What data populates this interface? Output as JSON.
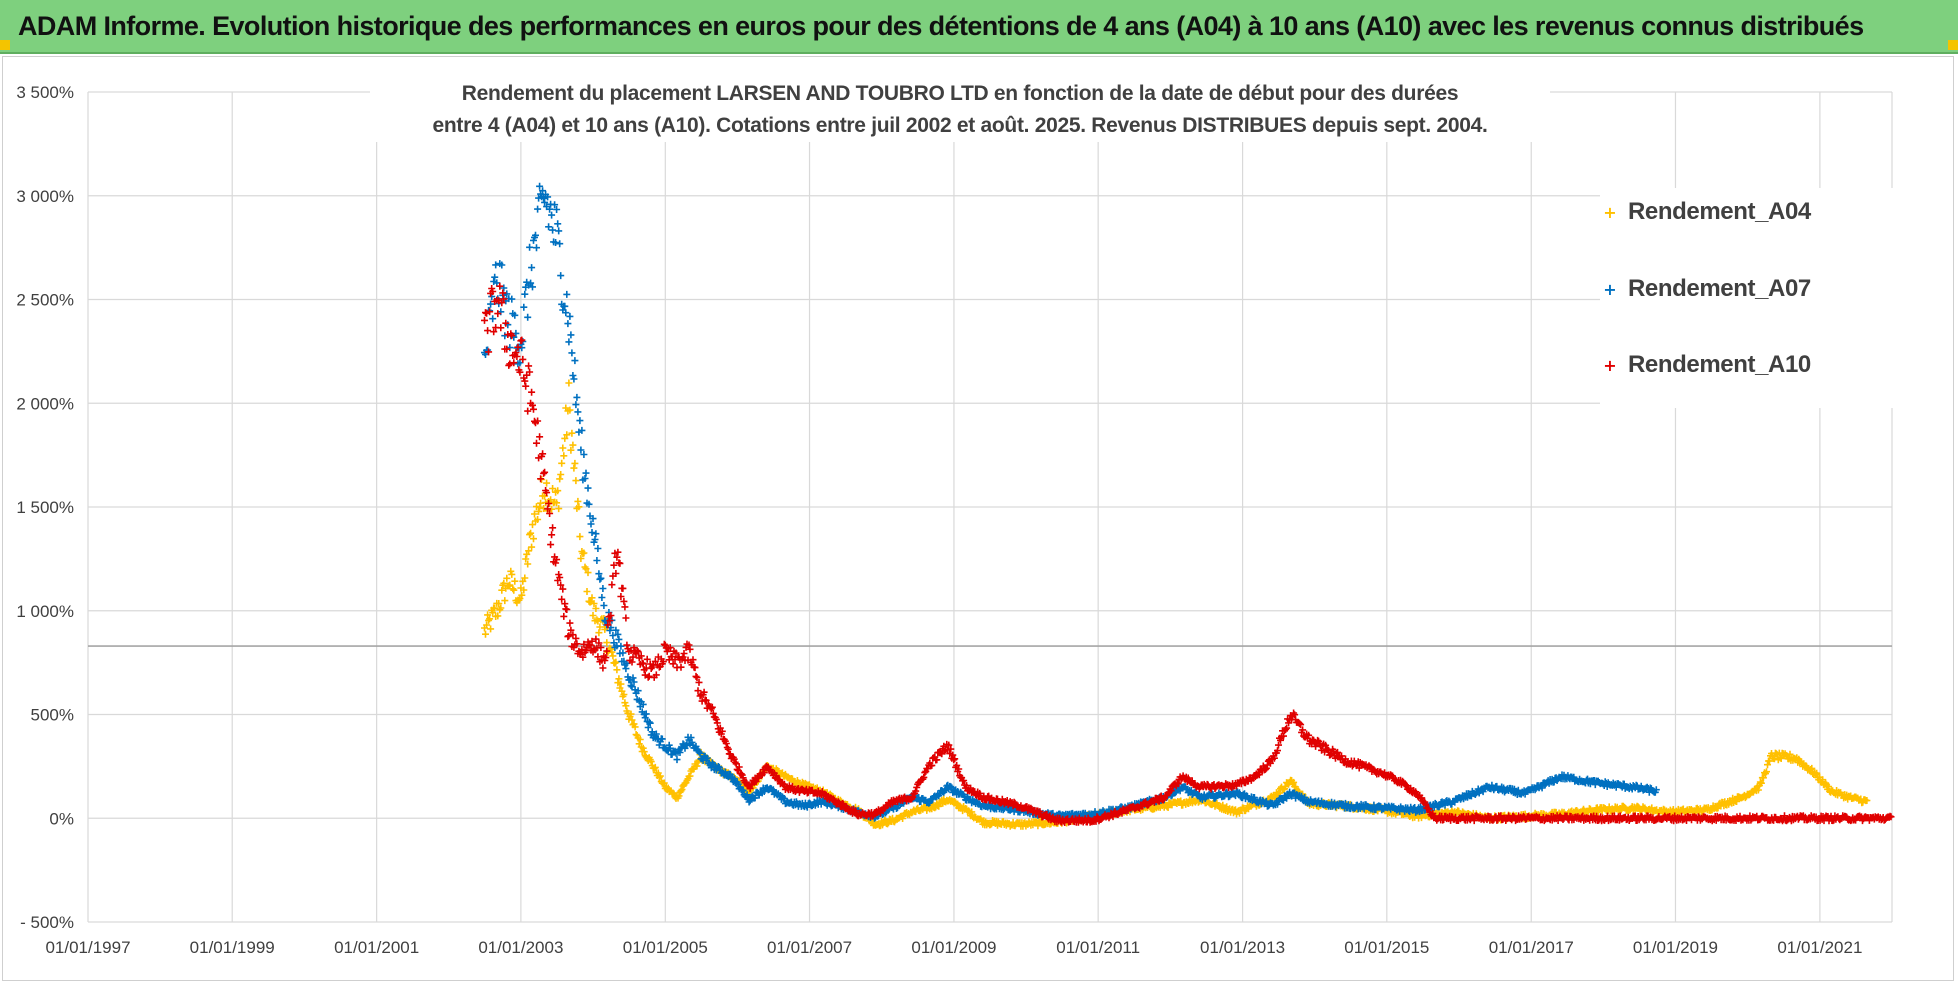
{
  "banner": {
    "text": "ADAM Informe. Evolution historique des performances en euros pour des détentions de 4 ans (A04) à 10 ans (A10) avec les revenus connus distribués"
  },
  "colors": {
    "banner_bg": "#7ed07e",
    "corner": "#f4c400",
    "grid": "#d9d9d9",
    "axis_text": "#404040",
    "A04": "#ffc000",
    "A07": "#0070c0",
    "A10": "#e00000"
  },
  "chart_data": {
    "type": "scatter",
    "title_line1": "Rendement du placement LARSEN AND TOUBRO LTD en fonction de la date de début pour des durées",
    "title_line2": "entre 4 (A04) et 10 ans (A10). Cotations entre juil 2002 et août. 2025. Revenus DISTRIBUES depuis sept. 2004.",
    "xlabel": "",
    "ylabel": "",
    "x_range": [
      "1997-01-01",
      "2022-01-01"
    ],
    "ylim": [
      -500,
      3500
    ],
    "y_ticks": [
      -500,
      0,
      500,
      1000,
      1500,
      2000,
      2500,
      3000,
      3500
    ],
    "y_tick_labels": [
      "- 500%",
      "0%",
      "500%",
      "1 000%",
      "1 500%",
      "2 000%",
      "2 500%",
      "3 000%",
      "3 500%"
    ],
    "x_ticks": [
      "1997-01-01",
      "1999-01-01",
      "2001-01-01",
      "2003-01-01",
      "2005-01-01",
      "2007-01-01",
      "2009-01-01",
      "2011-01-01",
      "2013-01-01",
      "2015-01-01",
      "2017-01-01",
      "2019-01-01",
      "2021-01-01"
    ],
    "x_tick_labels": [
      "01/01/1997",
      "01/01/1999",
      "01/01/2001",
      "01/01/2003",
      "01/01/2005",
      "01/01/2007",
      "01/01/2009",
      "01/01/2011",
      "01/01/2013",
      "01/01/2015",
      "01/01/2017",
      "01/01/2019",
      "01/01/2021"
    ],
    "reference_line_y": 830,
    "grid": true,
    "legend_position": "top-right",
    "marker": "+",
    "series": [
      {
        "name": "Rendement_A04",
        "color": "#ffc000",
        "points": [
          [
            "2002-07-01",
            900
          ],
          [
            "2002-09-01",
            1000
          ],
          [
            "2002-11-01",
            1150
          ],
          [
            "2003-01-01",
            1050
          ],
          [
            "2003-03-01",
            1400
          ],
          [
            "2003-05-01",
            1600
          ],
          [
            "2003-07-01",
            1500
          ],
          [
            "2003-09-01",
            2000
          ],
          [
            "2003-11-01",
            1300
          ],
          [
            "2004-01-01",
            1000
          ],
          [
            "2004-03-01",
            900
          ],
          [
            "2004-05-01",
            700
          ],
          [
            "2004-07-01",
            500
          ],
          [
            "2004-09-01",
            350
          ],
          [
            "2004-11-01",
            250
          ],
          [
            "2005-01-01",
            150
          ],
          [
            "2005-03-01",
            100
          ],
          [
            "2005-05-01",
            200
          ],
          [
            "2005-07-01",
            300
          ],
          [
            "2005-09-01",
            250
          ],
          [
            "2005-12-01",
            200
          ],
          [
            "2006-03-01",
            130
          ],
          [
            "2006-06-01",
            250
          ],
          [
            "2006-09-01",
            200
          ],
          [
            "2006-12-01",
            160
          ],
          [
            "2007-03-01",
            130
          ],
          [
            "2007-06-01",
            80
          ],
          [
            "2007-09-01",
            40
          ],
          [
            "2007-12-01",
            -30
          ],
          [
            "2008-03-01",
            -10
          ],
          [
            "2008-06-01",
            30
          ],
          [
            "2008-09-01",
            50
          ],
          [
            "2008-12-01",
            90
          ],
          [
            "2009-03-01",
            40
          ],
          [
            "2009-06-01",
            -20
          ],
          [
            "2009-12-01",
            -30
          ],
          [
            "2010-06-01",
            -20
          ],
          [
            "2010-12-01",
            10
          ],
          [
            "2011-06-01",
            40
          ],
          [
            "2011-12-01",
            60
          ],
          [
            "2012-06-01",
            90
          ],
          [
            "2012-12-01",
            30
          ],
          [
            "2013-06-01",
            100
          ],
          [
            "2013-09-01",
            180
          ],
          [
            "2013-12-01",
            70
          ],
          [
            "2014-06-01",
            60
          ],
          [
            "2014-12-01",
            40
          ],
          [
            "2015-06-01",
            10
          ],
          [
            "2015-12-01",
            30
          ],
          [
            "2016-06-01",
            0
          ],
          [
            "2016-12-01",
            10
          ],
          [
            "2017-06-01",
            20
          ],
          [
            "2017-12-01",
            40
          ],
          [
            "2018-06-01",
            50
          ],
          [
            "2018-12-01",
            30
          ],
          [
            "2019-06-01",
            40
          ],
          [
            "2019-12-01",
            100
          ],
          [
            "2020-03-01",
            150
          ],
          [
            "2020-05-01",
            300
          ],
          [
            "2020-09-01",
            290
          ],
          [
            "2020-12-01",
            220
          ],
          [
            "2021-03-01",
            130
          ],
          [
            "2021-06-01",
            100
          ],
          [
            "2021-09-01",
            80
          ]
        ]
      },
      {
        "name": "Rendement_A07",
        "color": "#0070c0",
        "points": [
          [
            "2002-07-01",
            2200
          ],
          [
            "2002-09-01",
            2600
          ],
          [
            "2002-11-01",
            2400
          ],
          [
            "2003-01-01",
            2300
          ],
          [
            "2003-03-01",
            2700
          ],
          [
            "2003-05-01",
            3000
          ],
          [
            "2003-07-01",
            2800
          ],
          [
            "2003-09-01",
            2400
          ],
          [
            "2003-11-01",
            1800
          ],
          [
            "2004-01-01",
            1400
          ],
          [
            "2004-03-01",
            1000
          ],
          [
            "2004-05-01",
            850
          ],
          [
            "2004-07-01",
            700
          ],
          [
            "2004-09-01",
            550
          ],
          [
            "2004-11-01",
            400
          ],
          [
            "2005-01-01",
            350
          ],
          [
            "2005-03-01",
            300
          ],
          [
            "2005-05-01",
            380
          ],
          [
            "2005-07-01",
            300
          ],
          [
            "2005-09-01",
            250
          ],
          [
            "2005-12-01",
            200
          ],
          [
            "2006-03-01",
            90
          ],
          [
            "2006-06-01",
            150
          ],
          [
            "2006-09-01",
            80
          ],
          [
            "2006-12-01",
            60
          ],
          [
            "2007-03-01",
            80
          ],
          [
            "2007-06-01",
            60
          ],
          [
            "2007-09-01",
            30
          ],
          [
            "2007-12-01",
            10
          ],
          [
            "2008-03-01",
            50
          ],
          [
            "2008-06-01",
            100
          ],
          [
            "2008-09-01",
            80
          ],
          [
            "2008-12-01",
            150
          ],
          [
            "2009-03-01",
            100
          ],
          [
            "2009-06-01",
            60
          ],
          [
            "2009-12-01",
            40
          ],
          [
            "2010-06-01",
            10
          ],
          [
            "2010-12-01",
            20
          ],
          [
            "2011-06-01",
            50
          ],
          [
            "2011-12-01",
            100
          ],
          [
            "2012-03-01",
            150
          ],
          [
            "2012-06-01",
            100
          ],
          [
            "2012-12-01",
            120
          ],
          [
            "2013-06-01",
            60
          ],
          [
            "2013-09-01",
            120
          ],
          [
            "2013-12-01",
            80
          ],
          [
            "2014-06-01",
            60
          ],
          [
            "2014-12-01",
            50
          ],
          [
            "2015-06-01",
            40
          ],
          [
            "2015-12-01",
            80
          ],
          [
            "2016-06-01",
            150
          ],
          [
            "2016-12-01",
            120
          ],
          [
            "2017-06-01",
            200
          ],
          [
            "2017-12-01",
            170
          ],
          [
            "2018-06-01",
            150
          ],
          [
            "2018-10-01",
            130
          ]
        ]
      },
      {
        "name": "Rendement_A10",
        "color": "#e00000",
        "points": [
          [
            "2002-07-01",
            2300
          ],
          [
            "2002-09-01",
            2500
          ],
          [
            "2002-11-01",
            2300
          ],
          [
            "2003-01-01",
            2200
          ],
          [
            "2003-03-01",
            2000
          ],
          [
            "2003-05-01",
            1600
          ],
          [
            "2003-07-01",
            1200
          ],
          [
            "2003-09-01",
            900
          ],
          [
            "2003-11-01",
            800
          ],
          [
            "2004-01-01",
            850
          ],
          [
            "2004-03-01",
            750
          ],
          [
            "2004-05-01",
            1300
          ],
          [
            "2004-07-01",
            800
          ],
          [
            "2004-09-01",
            750
          ],
          [
            "2004-11-01",
            700
          ],
          [
            "2005-01-01",
            800
          ],
          [
            "2005-03-01",
            750
          ],
          [
            "2005-05-01",
            800
          ],
          [
            "2005-07-01",
            600
          ],
          [
            "2005-09-01",
            500
          ],
          [
            "2005-12-01",
            300
          ],
          [
            "2006-03-01",
            150
          ],
          [
            "2006-06-01",
            250
          ],
          [
            "2006-09-01",
            150
          ],
          [
            "2006-12-01",
            130
          ],
          [
            "2007-03-01",
            120
          ],
          [
            "2007-06-01",
            70
          ],
          [
            "2007-09-01",
            20
          ],
          [
            "2007-12-01",
            20
          ],
          [
            "2008-03-01",
            80
          ],
          [
            "2008-06-01",
            100
          ],
          [
            "2008-09-01",
            260
          ],
          [
            "2008-12-01",
            350
          ],
          [
            "2009-03-01",
            150
          ],
          [
            "2009-06-01",
            100
          ],
          [
            "2009-12-01",
            60
          ],
          [
            "2010-06-01",
            -10
          ],
          [
            "2010-12-01",
            -10
          ],
          [
            "2011-06-01",
            40
          ],
          [
            "2011-12-01",
            100
          ],
          [
            "2012-03-01",
            200
          ],
          [
            "2012-06-01",
            150
          ],
          [
            "2012-12-01",
            160
          ],
          [
            "2013-03-01",
            200
          ],
          [
            "2013-06-01",
            280
          ],
          [
            "2013-09-01",
            500
          ],
          [
            "2013-12-01",
            380
          ],
          [
            "2014-06-01",
            280
          ],
          [
            "2014-12-01",
            220
          ],
          [
            "2015-03-01",
            180
          ],
          [
            "2015-06-01",
            120
          ],
          [
            "2015-09-01",
            0
          ],
          [
            "2016-06-01",
            0
          ],
          [
            "2017-06-01",
            0
          ],
          [
            "2018-06-01",
            0
          ],
          [
            "2019-06-01",
            0
          ],
          [
            "2020-06-01",
            0
          ],
          [
            "2021-06-01",
            0
          ],
          [
            "2022-01-01",
            0
          ]
        ]
      }
    ]
  }
}
